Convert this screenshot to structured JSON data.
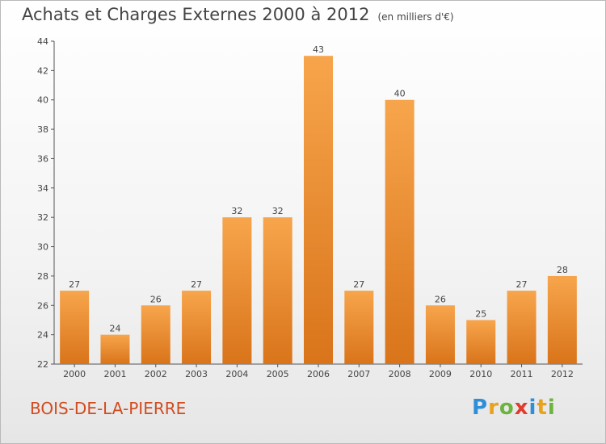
{
  "title": "Achats et Charges Externes 2000 à 2012",
  "subtitle": "(en milliers d'€)",
  "commune": "BOIS-DE-LA-PIERRE",
  "logo": {
    "text": "Proxiti",
    "letters": [
      {
        "ch": "P",
        "color": "#2e8fd8"
      },
      {
        "ch": "r",
        "color": "#e8a21c"
      },
      {
        "ch": "o",
        "color": "#6cb33f"
      },
      {
        "ch": "x",
        "color": "#e23b2e"
      },
      {
        "ch": "i",
        "color": "#2e8fd8"
      },
      {
        "ch": "t",
        "color": "#e8a21c"
      },
      {
        "ch": "i",
        "color": "#6cb33f"
      }
    ]
  },
  "colors": {
    "bar_top": "#f7a54c",
    "bar_bottom": "#d9741a",
    "text": "#444444",
    "commune": "#d24b1f"
  },
  "chart_data": {
    "type": "bar",
    "categories": [
      "2000",
      "2001",
      "2002",
      "2003",
      "2004",
      "2005",
      "2006",
      "2007",
      "2008",
      "2009",
      "2010",
      "2011",
      "2012"
    ],
    "values": [
      27,
      24,
      26,
      27,
      32,
      32,
      43,
      27,
      40,
      26,
      25,
      27,
      28
    ],
    "ylim": [
      22,
      44
    ],
    "yticks": [
      22,
      24,
      26,
      28,
      30,
      32,
      34,
      36,
      38,
      40,
      42,
      44
    ],
    "grid": false,
    "xlabel": "",
    "ylabel": ""
  }
}
